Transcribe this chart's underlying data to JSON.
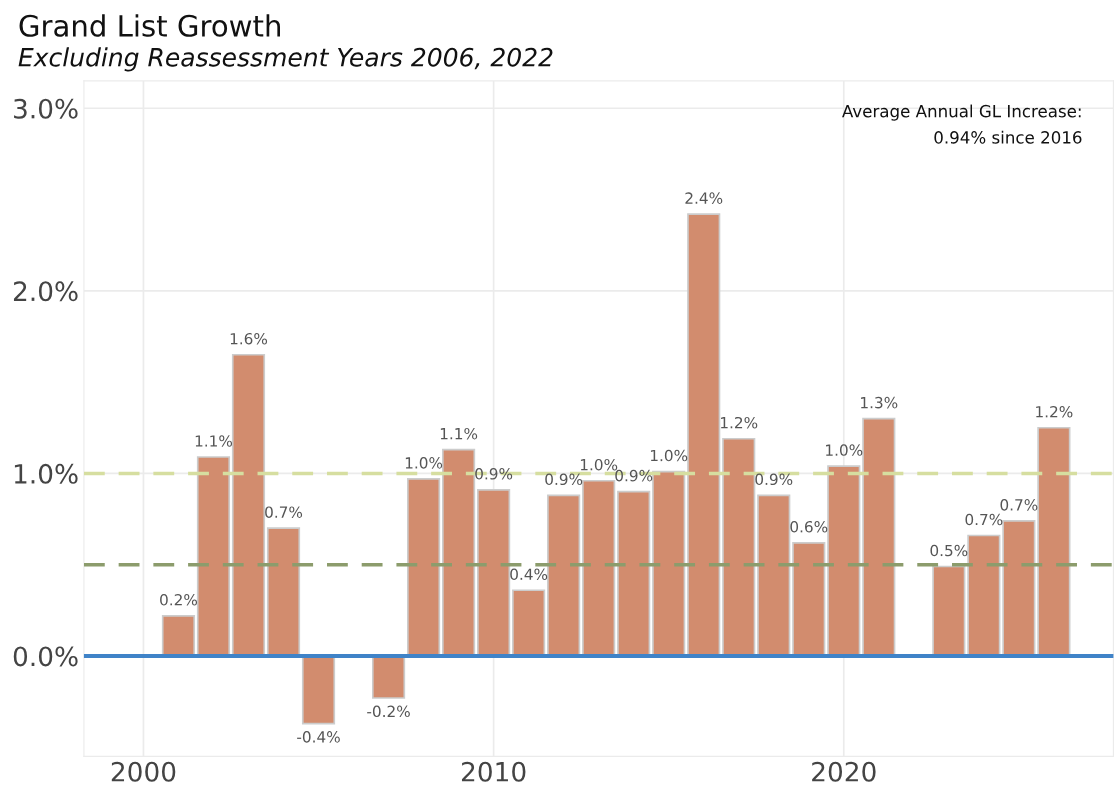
{
  "chart_data": {
    "type": "bar",
    "title": "Grand List Growth",
    "subtitle": "Excluding Reassessment Years 2006, 2022",
    "x": [
      2001,
      2002,
      2003,
      2004,
      2005,
      2007,
      2008,
      2009,
      2010,
      2011,
      2012,
      2013,
      2014,
      2015,
      2016,
      2017,
      2018,
      2019,
      2020,
      2021,
      2023,
      2024,
      2025,
      2026
    ],
    "values": [
      0.22,
      1.09,
      1.65,
      0.7,
      -0.37,
      -0.23,
      0.97,
      1.13,
      0.91,
      0.36,
      0.88,
      0.96,
      0.9,
      1.01,
      2.42,
      1.19,
      0.88,
      0.62,
      1.04,
      1.3,
      0.49,
      0.66,
      0.74,
      1.25
    ],
    "value_labels": [
      "0.2%",
      "1.1%",
      "1.6%",
      "0.7%",
      "-0.4%",
      "-0.2%",
      "1.0%",
      "1.1%",
      "0.9%",
      "0.4%",
      "0.9%",
      "1.0%",
      "0.9%",
      "1.0%",
      "2.4%",
      "1.2%",
      "0.9%",
      "0.6%",
      "1.0%",
      "1.3%",
      "0.5%",
      "0.7%",
      "0.7%",
      "1.2%"
    ],
    "color": "#d28c6e",
    "xlim": [
      1998.3,
      2027.7
    ],
    "xticks": [
      2000,
      2010,
      2020
    ],
    "ylim": [
      -0.55,
      3.15
    ],
    "yticks": [
      {
        "value": 0,
        "label": "0.0%"
      },
      {
        "value": 1,
        "label": "1.0%"
      },
      {
        "value": 2,
        "label": "2.0%"
      },
      {
        "value": 3,
        "label": "3.0%"
      }
    ],
    "grid": true,
    "ref_lines": [
      {
        "axis": "y",
        "value": 1.0,
        "color": "#d6dea0",
        "line_style": "dashed"
      },
      {
        "axis": "y",
        "value": 0.5,
        "color": "#8c9c6c",
        "line_style": "dashed"
      },
      {
        "axis": "y",
        "value": 0,
        "color": "#3f83c8",
        "line_style": "solid"
      }
    ],
    "annotations": [
      "Average Annual GL Increase:\n0.94% since 2016"
    ]
  }
}
